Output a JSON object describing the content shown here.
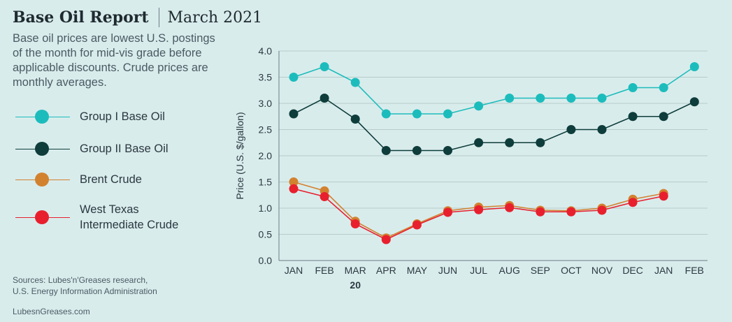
{
  "header": {
    "title": "Base Oil Report",
    "subtitle": "March 2021"
  },
  "description": "Base oil prices are lowest U.S. postings of the month for mid-vis grade before applicable discounts. Crude prices are monthly averages.",
  "sources": {
    "line1": "Sources: Lubes'n'Greases research,",
    "line2": "U.S. Energy Information Administration"
  },
  "site": "LubesnGreases.com",
  "chart_data": {
    "type": "line",
    "categories": [
      "JAN",
      "FEB",
      "MAR",
      "APR",
      "MAY",
      "JUN",
      "JUL",
      "AUG",
      "SEP",
      "OCT",
      "NOV",
      "DEC",
      "JAN",
      "FEB"
    ],
    "category_note": {
      "index": 2,
      "label": "20"
    },
    "ylabel": "Price (U.S. $/gallon)",
    "ylim": [
      0,
      4.0
    ],
    "yticks": [
      "0.0",
      "0.5",
      "1.0",
      "1.5",
      "2.0",
      "2.5",
      "3.0",
      "3.5",
      "4.0"
    ],
    "grid": "horizontal",
    "legend_position": "left",
    "series": [
      {
        "name": "Group I Base Oil",
        "color": "#1dbcbc",
        "values": [
          3.5,
          3.7,
          3.4,
          2.8,
          2.8,
          2.8,
          2.95,
          3.1,
          3.1,
          3.1,
          3.1,
          3.3,
          3.3,
          3.7
        ]
      },
      {
        "name": "Group II Base Oil",
        "color": "#0e3d3b",
        "values": [
          2.8,
          3.1,
          2.7,
          2.1,
          2.1,
          2.1,
          2.25,
          2.25,
          2.25,
          2.5,
          2.5,
          2.75,
          2.75,
          3.03
        ]
      },
      {
        "name": "Brent Crude",
        "color": "#d2822f",
        "values": [
          1.5,
          1.33,
          0.75,
          0.43,
          0.7,
          0.95,
          1.02,
          1.05,
          0.96,
          0.95,
          1.0,
          1.17,
          1.28,
          null
        ]
      },
      {
        "name_lines": [
          "West Texas",
          "Intermediate Crude"
        ],
        "color": "#e8202e",
        "values": [
          1.37,
          1.22,
          0.7,
          0.4,
          0.68,
          0.92,
          0.97,
          1.01,
          0.93,
          0.93,
          0.96,
          1.11,
          1.23,
          null
        ]
      }
    ]
  }
}
